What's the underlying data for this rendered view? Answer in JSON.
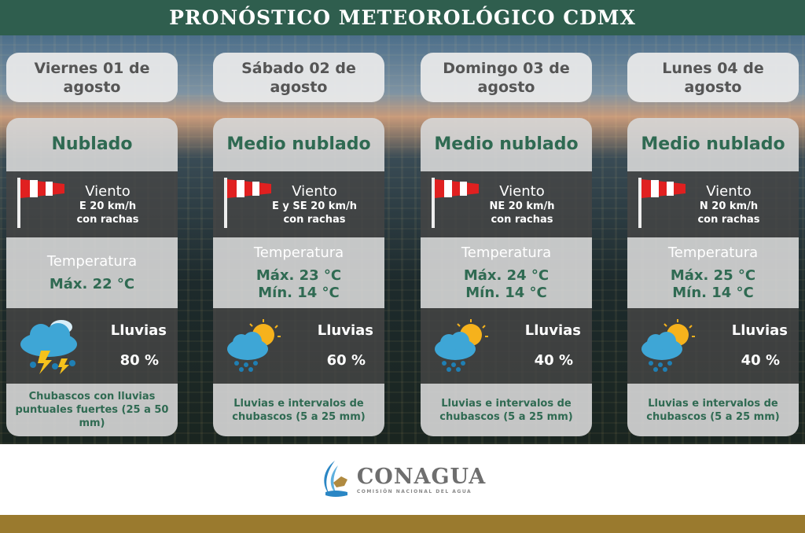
{
  "title": "PRONÓSTICO METEOROLÓGICO CDMX",
  "colors": {
    "header": "#2f5e4e",
    "accent_text": "#2f6a52",
    "gold_bar": "#9a7a2e"
  },
  "days": [
    {
      "date": "Viernes 01 de agosto",
      "condition": "Nublado",
      "wind_label": "Viento",
      "wind_value": "E 20 km/h",
      "wind_note": "con rachas",
      "temp_label": "Temperatura",
      "max": "Máx. 22 °C",
      "min": "",
      "rain_label": "Lluvias",
      "rain_pct": "80 %",
      "rain_icon": "storm-cloud-icon",
      "description": "Chubascos con lluvias puntuales fuertes (25 a 50 mm)"
    },
    {
      "date": "Sábado 02 de agosto",
      "condition": "Medio nublado",
      "wind_label": "Viento",
      "wind_value": "E y SE 20 km/h",
      "wind_note": "con rachas",
      "temp_label": "Temperatura",
      "max": "Máx. 23 °C",
      "min": "Mín. 14 °C",
      "rain_label": "Lluvias",
      "rain_pct": "60 %",
      "rain_icon": "sun-rain-cloud-icon",
      "description": "Lluvias e intervalos de chubascos (5 a 25 mm)"
    },
    {
      "date": "Domingo 03 de agosto",
      "condition": "Medio nublado",
      "wind_label": "Viento",
      "wind_value": "NE 20 km/h",
      "wind_note": "con rachas",
      "temp_label": "Temperatura",
      "max": "Máx. 24 °C",
      "min": "Mín. 14 °C",
      "rain_label": "Lluvias",
      "rain_pct": "40 %",
      "rain_icon": "sun-rain-cloud-icon",
      "description": "Lluvias e intervalos de chubascos (5 a 25 mm)"
    },
    {
      "date": "Lunes 04 de agosto",
      "condition": "Medio nublado",
      "wind_label": "Viento",
      "wind_value": "N 20 km/h",
      "wind_note": "con rachas",
      "temp_label": "Temperatura",
      "max": "Máx. 25 °C",
      "min": "Mín. 14 °C",
      "rain_label": "Lluvias",
      "rain_pct": "40 %",
      "rain_icon": "sun-rain-cloud-icon",
      "description": "Lluvias e intervalos de chubascos (5 a 25 mm)"
    }
  ],
  "footer": {
    "logo_name": "CONAGUA",
    "logo_subtitle": "COMISIÓN NACIONAL DEL AGUA"
  }
}
